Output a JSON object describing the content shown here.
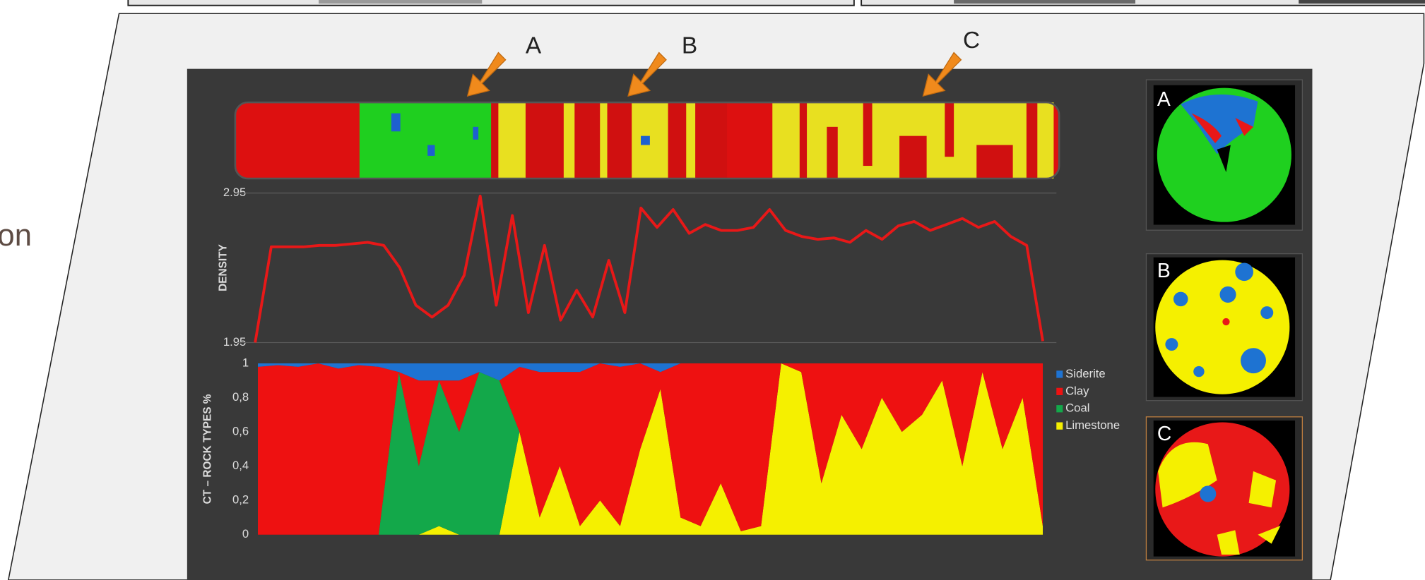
{
  "page": {
    "partial_text": "on",
    "arrows": [
      "A",
      "B",
      "C"
    ],
    "thumbnails": [
      "A",
      "B",
      "C"
    ]
  },
  "chart_data": [
    {
      "type": "line",
      "y_label": "DENSITY",
      "color": "#e81818",
      "values": [
        1.95,
        2.59,
        2.59,
        2.59,
        2.6,
        2.6,
        2.61,
        2.62,
        2.6,
        2.45,
        2.2,
        2.12,
        2.2,
        2.4,
        2.93,
        2.2,
        2.8,
        2.15,
        2.6,
        2.1,
        2.3,
        2.12,
        2.5,
        2.15,
        2.85,
        2.72,
        2.84,
        2.68,
        2.74,
        2.7,
        2.7,
        2.72,
        2.84,
        2.7,
        2.66,
        2.64,
        2.65,
        2.62,
        2.7,
        2.64,
        2.73,
        2.76,
        2.7,
        2.74,
        2.78,
        2.72,
        2.76,
        2.66,
        2.6,
        1.96
      ],
      "ylim": [
        1.95,
        2.95
      ],
      "yticks": [
        2.95,
        1.95
      ],
      "grid": true
    },
    {
      "type": "stacked_area",
      "y_label": "CT – ROCK TYPES %",
      "legend": "right",
      "series": [
        {
          "name": "Siderite",
          "color": "#1e73d2",
          "values": [
            0.02,
            0.01,
            0.02,
            0,
            0.03,
            0.01,
            0.02,
            0.05,
            0.1,
            0.1,
            0.1,
            0.05,
            0.1,
            0.02,
            0.05,
            0.05,
            0.05,
            0,
            0.02,
            0,
            0.05,
            0,
            0,
            0,
            0,
            0,
            0,
            0,
            0,
            0,
            0,
            0,
            0,
            0,
            0,
            0,
            0,
            0,
            0,
            0
          ]
        },
        {
          "name": "Clay",
          "color": "#ee1111",
          "values": [
            0.98,
            0.99,
            0.98,
            1,
            0.97,
            0.99,
            0.98,
            0,
            0.5,
            0,
            0.3,
            0,
            0,
            0.38,
            0.85,
            0.55,
            0.9,
            0.8,
            0.93,
            0.5,
            0.1,
            0.9,
            0.95,
            0.7,
            0.98,
            0.95,
            0,
            0.05,
            0.7,
            0.3,
            0.5,
            0.2,
            0.4,
            0.3,
            0.1,
            0.6,
            0.05,
            0.5,
            0.2,
            0.95
          ]
        },
        {
          "name": "Coal",
          "color": "#13a84a",
          "values": [
            0,
            0,
            0,
            0,
            0,
            0,
            0,
            0.95,
            0.4,
            0.85,
            0.6,
            0.95,
            0.9,
            0,
            0,
            0,
            0,
            0,
            0,
            0,
            0,
            0,
            0,
            0,
            0,
            0,
            0,
            0,
            0,
            0,
            0,
            0,
            0,
            0,
            0,
            0,
            0,
            0,
            0,
            0
          ]
        },
        {
          "name": "Limestone",
          "color": "#f5f000",
          "values": [
            0,
            0,
            0,
            0,
            0,
            0,
            0,
            0,
            0,
            0.05,
            0,
            0,
            0,
            0.6,
            0.1,
            0.4,
            0.05,
            0.2,
            0.05,
            0.5,
            0.85,
            0.1,
            0.05,
            0.3,
            0.02,
            0.05,
            1,
            0.95,
            0.3,
            0.7,
            0.5,
            0.8,
            0.6,
            0.7,
            0.9,
            0.4,
            0.95,
            0.5,
            0.8,
            0.05
          ]
        }
      ],
      "ylim": [
        0,
        1
      ],
      "yticks": [
        0,
        {
          "value": 0.2,
          "label": "0,2"
        },
        {
          "value": 0.4,
          "label": "0,4"
        },
        {
          "value": 0.6,
          "label": "0,6"
        },
        {
          "value": 0.8,
          "label": "0,8"
        },
        1
      ]
    }
  ]
}
